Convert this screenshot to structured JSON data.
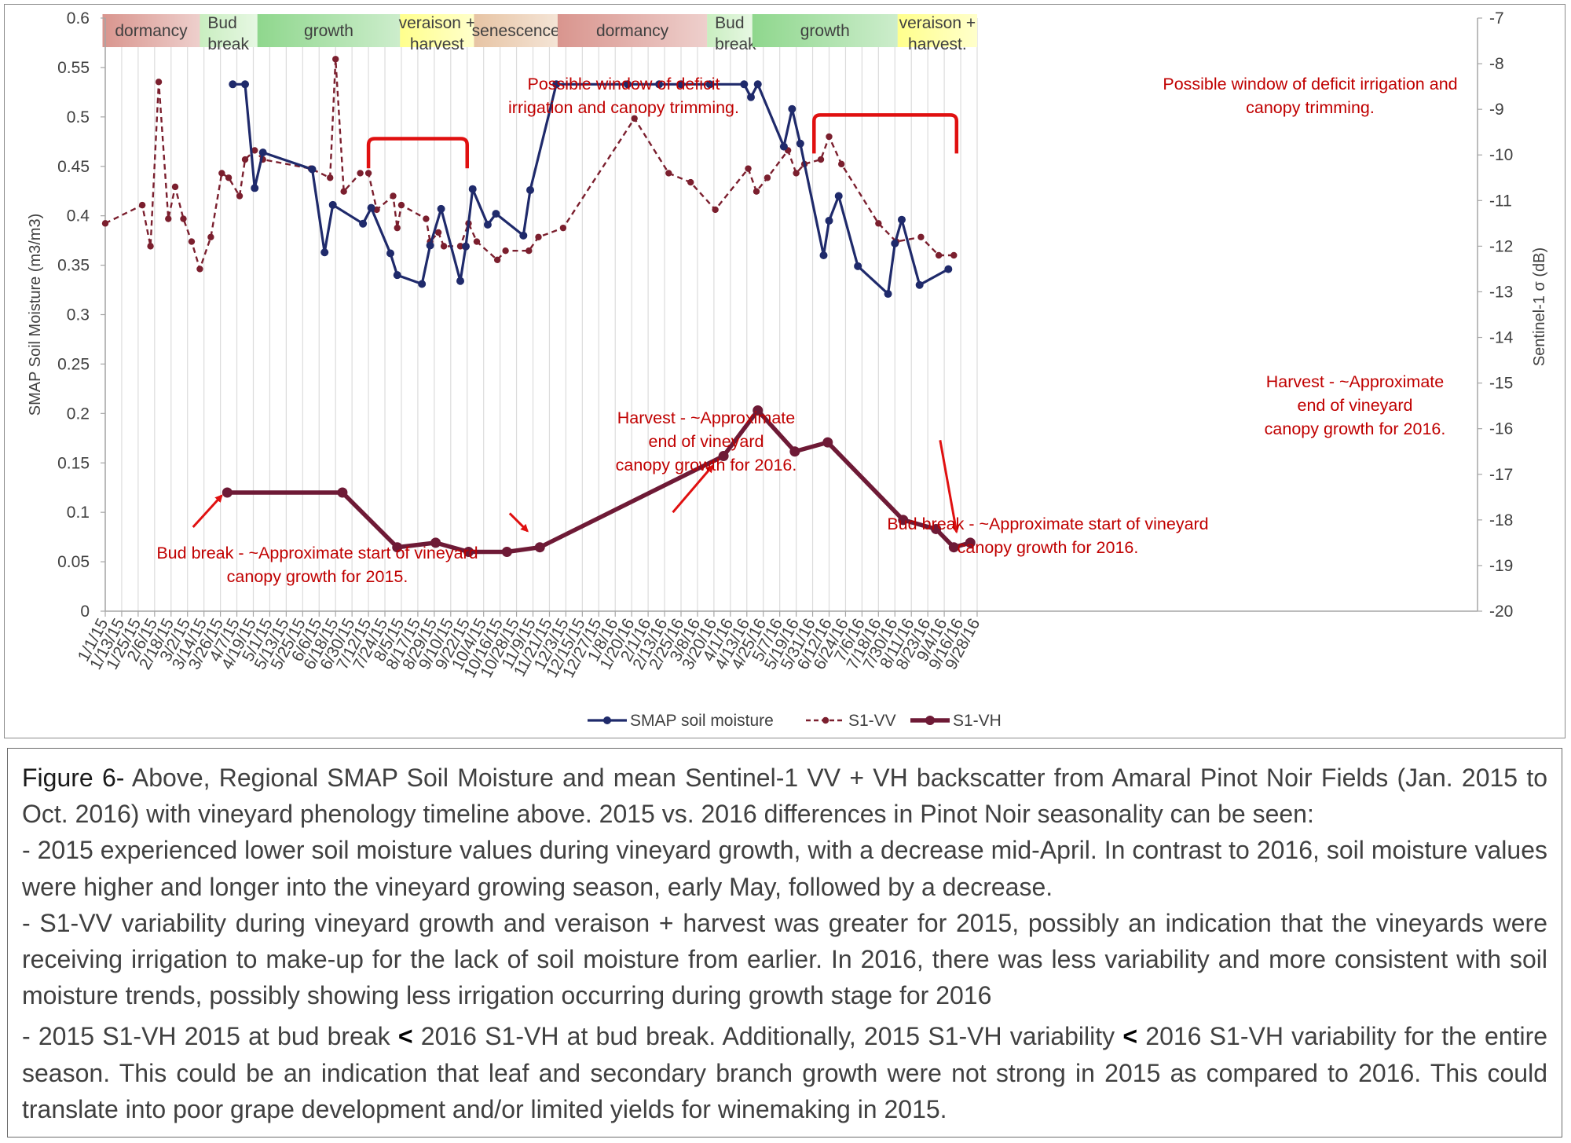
{
  "chart_data": {
    "type": "line",
    "x_ticks": [
      "1/1/15",
      "1/13/15",
      "1/25/15",
      "2/6/15",
      "2/18/15",
      "3/2/15",
      "3/14/15",
      "3/26/15",
      "4/7/15",
      "4/19/15",
      "5/1/15",
      "5/13/15",
      "5/25/15",
      "6/6/15",
      "6/18/15",
      "6/30/15",
      "7/12/15",
      "7/24/15",
      "8/5/15",
      "8/17/15",
      "8/29/15",
      "9/10/15",
      "9/22/15",
      "10/4/15",
      "10/16/15",
      "10/28/15",
      "11/9/15",
      "11/21/15",
      "12/3/15",
      "12/15/15",
      "12/27/15",
      "1/8/16",
      "1/20/16",
      "2/1/16",
      "2/13/16",
      "2/25/16",
      "3/8/16",
      "3/20/16",
      "4/1/16",
      "4/13/16",
      "4/25/16",
      "5/7/16",
      "5/19/16",
      "5/31/16",
      "6/12/16",
      "6/24/16",
      "7/6/16",
      "7/18/16",
      "7/30/16",
      "8/11/16",
      "8/23/16",
      "9/4/16",
      "9/16/16",
      "9/28/16"
    ],
    "ylabel": "SMAP Soil Moisture (m3/m3)",
    "y2label": "Sentinel-1 σ (dB)",
    "ylim": [
      0,
      0.6
    ],
    "y2lim": [
      -20,
      -7
    ],
    "y_ticks": [
      "0",
      "0.05",
      "0.1",
      "0.15",
      "0.2",
      "0.25",
      "0.3",
      "0.35",
      "0.4",
      "0.45",
      "0.5",
      "0.55",
      "0.6"
    ],
    "y2_ticks": [
      "-20",
      "-19",
      "-18",
      "-17",
      "-16",
      "-15",
      "-14",
      "-13",
      "-12",
      "-11",
      "-10",
      "-9",
      "-8",
      "-7"
    ],
    "grid": "vertical",
    "legend": "bottom",
    "series": [
      {
        "name": "SMAP soil moisture",
        "axis": "left",
        "color": "#1f2a6b",
        "style": "solid-dot",
        "points": [
          [
            "2015-04-04",
            0.533
          ],
          [
            "2015-04-13",
            0.533
          ],
          [
            "2015-04-20",
            0.428
          ],
          [
            "2015-04-26",
            0.464
          ],
          [
            "2015-06-01",
            0.447
          ],
          [
            "2015-06-10",
            0.363
          ],
          [
            "2015-06-16",
            0.411
          ],
          [
            "2015-07-08",
            0.392
          ],
          [
            "2015-07-14",
            0.408
          ],
          [
            "2015-07-28",
            0.362
          ],
          [
            "2015-08-02",
            0.34
          ],
          [
            "2015-08-20",
            0.331
          ],
          [
            "2015-08-26",
            0.37
          ],
          [
            "2015-09-03",
            0.407
          ],
          [
            "2015-09-17",
            0.334
          ],
          [
            "2015-09-21",
            0.369
          ],
          [
            "2015-09-26",
            0.427
          ],
          [
            "2015-10-07",
            0.391
          ],
          [
            "2015-10-13",
            0.402
          ],
          [
            "2015-11-02",
            0.38
          ],
          [
            "2015-11-07",
            0.426
          ],
          [
            "2015-11-26",
            0.533
          ],
          [
            "2016-01-17",
            0.533
          ],
          [
            "2016-02-09",
            0.533
          ],
          [
            "2016-02-25",
            0.533
          ],
          [
            "2016-03-17",
            0.533
          ],
          [
            "2016-04-11",
            0.533
          ],
          [
            "2016-04-16",
            0.52
          ],
          [
            "2016-04-21",
            0.533
          ],
          [
            "2016-05-10",
            0.47
          ],
          [
            "2016-05-16",
            0.508
          ],
          [
            "2016-05-22",
            0.473
          ],
          [
            "2016-06-08",
            0.36
          ],
          [
            "2016-06-12",
            0.395
          ],
          [
            "2016-06-19",
            0.42
          ],
          [
            "2016-07-03",
            0.349
          ],
          [
            "2016-07-25",
            0.321
          ],
          [
            "2016-07-30",
            0.372
          ],
          [
            "2016-08-04",
            0.396
          ],
          [
            "2016-08-17",
            0.33
          ],
          [
            "2016-09-07",
            0.346
          ]
        ]
      },
      {
        "name": "S1-VV",
        "axis": "right",
        "color": "#7b1f2e",
        "style": "dashed-dot",
        "points": [
          [
            "2015-01-01",
            -11.5
          ],
          [
            "2015-01-28",
            -11.1
          ],
          [
            "2015-02-03",
            -12.0
          ],
          [
            "2015-02-09",
            -8.4
          ],
          [
            "2015-02-16",
            -11.4
          ],
          [
            "2015-02-21",
            -10.7
          ],
          [
            "2015-02-27",
            -11.4
          ],
          [
            "2015-03-05",
            -11.9
          ],
          [
            "2015-03-11",
            -12.5
          ],
          [
            "2015-03-19",
            -11.8
          ],
          [
            "2015-03-27",
            -10.4
          ],
          [
            "2015-04-01",
            -10.5
          ],
          [
            "2015-04-09",
            -10.9
          ],
          [
            "2015-04-13",
            -10.1
          ],
          [
            "2015-04-20",
            -9.9
          ],
          [
            "2015-04-26",
            -10.1
          ],
          [
            "2015-05-31",
            -10.3
          ],
          [
            "2015-06-14",
            -10.5
          ],
          [
            "2015-06-18",
            -7.9
          ],
          [
            "2015-06-24",
            -10.8
          ],
          [
            "2015-07-06",
            -10.4
          ],
          [
            "2015-07-12",
            -10.4
          ],
          [
            "2015-07-18",
            -11.2
          ],
          [
            "2015-07-30",
            -10.9
          ],
          [
            "2015-08-02",
            -11.6
          ],
          [
            "2015-08-05",
            -11.1
          ],
          [
            "2015-08-23",
            -11.4
          ],
          [
            "2015-08-26",
            -11.9
          ],
          [
            "2015-09-01",
            -11.7
          ],
          [
            "2015-09-05",
            -12.0
          ],
          [
            "2015-09-17",
            -12.0
          ],
          [
            "2015-09-23",
            -11.5
          ],
          [
            "2015-09-29",
            -11.9
          ],
          [
            "2015-10-14",
            -12.3
          ],
          [
            "2015-10-20",
            -12.1
          ],
          [
            "2015-11-06",
            -12.1
          ],
          [
            "2015-11-13",
            -11.8
          ],
          [
            "2015-12-01",
            -11.6
          ],
          [
            "2016-01-22",
            -9.2
          ],
          [
            "2016-02-16",
            -10.4
          ],
          [
            "2016-03-03",
            -10.6
          ],
          [
            "2016-03-21",
            -11.2
          ],
          [
            "2016-04-14",
            -10.3
          ],
          [
            "2016-04-20",
            -10.8
          ],
          [
            "2016-04-28",
            -10.5
          ],
          [
            "2016-05-13",
            -9.9
          ],
          [
            "2016-05-19",
            -10.4
          ],
          [
            "2016-05-25",
            -10.2
          ],
          [
            "2016-06-06",
            -10.1
          ],
          [
            "2016-06-12",
            -9.6
          ],
          [
            "2016-06-21",
            -10.2
          ],
          [
            "2016-07-18",
            -11.5
          ],
          [
            "2016-07-31",
            -11.9
          ],
          [
            "2016-08-18",
            -11.8
          ],
          [
            "2016-08-31",
            -12.2
          ],
          [
            "2016-09-11",
            -12.2
          ]
        ]
      },
      {
        "name": "S1-VH",
        "axis": "right",
        "color": "#6e1a36",
        "style": "thick-solid-dot",
        "points": [
          [
            "2015-03-31",
            -17.4
          ],
          [
            "2015-06-23",
            -17.4
          ],
          [
            "2015-08-02",
            -18.6
          ],
          [
            "2015-08-30",
            -18.5
          ],
          [
            "2015-09-23",
            -18.7
          ],
          [
            "2015-10-21",
            -18.7
          ],
          [
            "2015-11-14",
            -18.6
          ],
          [
            "2016-03-27",
            -16.6
          ],
          [
            "2016-04-21",
            -15.6
          ],
          [
            "2016-05-18",
            -16.5
          ],
          [
            "2016-06-11",
            -16.3
          ],
          [
            "2016-08-05",
            -18.0
          ],
          [
            "2016-08-29",
            -18.2
          ],
          [
            "2016-09-11",
            -18.6
          ],
          [
            "2016-09-23",
            -18.5
          ]
        ]
      }
    ],
    "phases": [
      {
        "label": "dormancy",
        "start": "2014-12-30",
        "end": "2015-03-11",
        "color": "#d9958e"
      },
      {
        "label": "Bud\nbreak",
        "start": "2015-03-11",
        "end": "2015-04-22",
        "color": "#c9eec0"
      },
      {
        "label": "growth",
        "start": "2015-04-22",
        "end": "2015-08-04",
        "color": "#8fd78d"
      },
      {
        "label": "veraison +\nharvest",
        "start": "2015-08-04",
        "end": "2015-09-27",
        "color": "#ffff8c"
      },
      {
        "label": "senescence",
        "start": "2015-09-27",
        "end": "2015-11-27",
        "color": "#e7c4a4"
      },
      {
        "label": "dormancy",
        "start": "2015-11-27",
        "end": "2016-03-15",
        "color": "#d9958e"
      },
      {
        "label": "Bud\nbreak",
        "start": "2016-03-15",
        "end": "2016-04-17",
        "color": "#c9eec0"
      },
      {
        "label": "growth",
        "start": "2016-04-17",
        "end": "2016-08-01",
        "color": "#8fd78d"
      },
      {
        "label": "veraison +\nharvest.",
        "start": "2016-08-01",
        "end": "2016-09-28",
        "color": "#ffff8c"
      }
    ],
    "annotations": [
      {
        "id": "deficit-2015",
        "lines": [
          "Possible window of deficit",
          "irrigation and canopy trimming."
        ]
      },
      {
        "id": "deficit-2016",
        "lines": [
          "Possible window of deficit irrigation and",
          "canopy trimming."
        ]
      },
      {
        "id": "harvest-2015",
        "lines": [
          "Harvest - ~Approximate",
          "end of vineyard",
          "canopy growth  for 2016."
        ]
      },
      {
        "id": "harvest-2016",
        "lines": [
          "Harvest - ~Approximate",
          "end of vineyard",
          "canopy growth  for 2016."
        ]
      },
      {
        "id": "budbreak-2015",
        "lines": [
          "Bud break - ~Approximate start of vineyard",
          "canopy growth  for 2015."
        ]
      },
      {
        "id": "budbreak-2016",
        "lines": [
          "Bud break - ~Approximate start of vineyard",
          "canopy growth  for 2016."
        ]
      }
    ],
    "brackets": [
      {
        "id": "bracket-2015",
        "start": "2015-07-12",
        "end": "2015-09-22",
        "y_start": 0.448,
        "y_top": 0.478
      },
      {
        "id": "bracket-2016",
        "start": "2016-06-01",
        "end": "2016-09-13",
        "y_start": 0.463,
        "y_top": 0.502
      }
    ],
    "arrows": [
      {
        "id": "arrow-budbreak-2015",
        "from": [
          "2015-03-06",
          0.085
        ],
        "to": [
          "2015-03-27",
          0.117
        ]
      },
      {
        "id": "arrow-harvest-2015",
        "from": [
          "2015-10-23",
          0.099
        ],
        "to": [
          "2015-11-05",
          0.081
        ]
      },
      {
        "id": "arrow-budbreak-2016",
        "from": [
          "2016-02-19",
          0.1
        ],
        "to": [
          "2016-03-19",
          0.147
        ]
      },
      {
        "id": "arrow-harvest-2016",
        "from": [
          "2016-09-01",
          0.173
        ],
        "to": [
          "2016-09-13",
          0.08
        ]
      }
    ]
  },
  "caption": {
    "figure_label": "Figure 6-",
    "intro": " Above, Regional SMAP Soil Moisture and mean Sentinel-1 VV + VH backscatter from Amaral Pinot Noir Fields (Jan. 2015 to Oct. 2016) with vineyard phenology timeline above. 2015 vs. 2016 differences in Pinot Noir seasonality can be seen:",
    "bullet1": "- 2015 experienced lower soil moisture values during vineyard growth, with a decrease mid-April. In contrast to 2016, soil moisture values were higher and longer into the vineyard growing season, early May, followed by a decrease.",
    "bullet2": "- S1-VV variability during vineyard growth and veraison + harvest was greater for 2015, possibly an indication that the vineyards were receiving irrigation to make-up for the lack of soil moisture from earlier. In 2016, there was less variability and more consistent with soil moisture trends, possibly showing less irrigation occurring during growth stage for 2016",
    "bullet3_a": "- 2015 S1-VH 2015 at bud break ",
    "lt1": "<",
    "bullet3_b": " 2016 S1-VH at bud break. Additionally, 2015 S1-VH variability ",
    "lt2": "<",
    "bullet3_c": " 2016 S1-VH variability for the entire season. This could be an indication that leaf and secondary branch growth were not strong in 2015 as compared to 2016. This could translate into poor grape development and/or limited yields for winemaking in 2015."
  }
}
